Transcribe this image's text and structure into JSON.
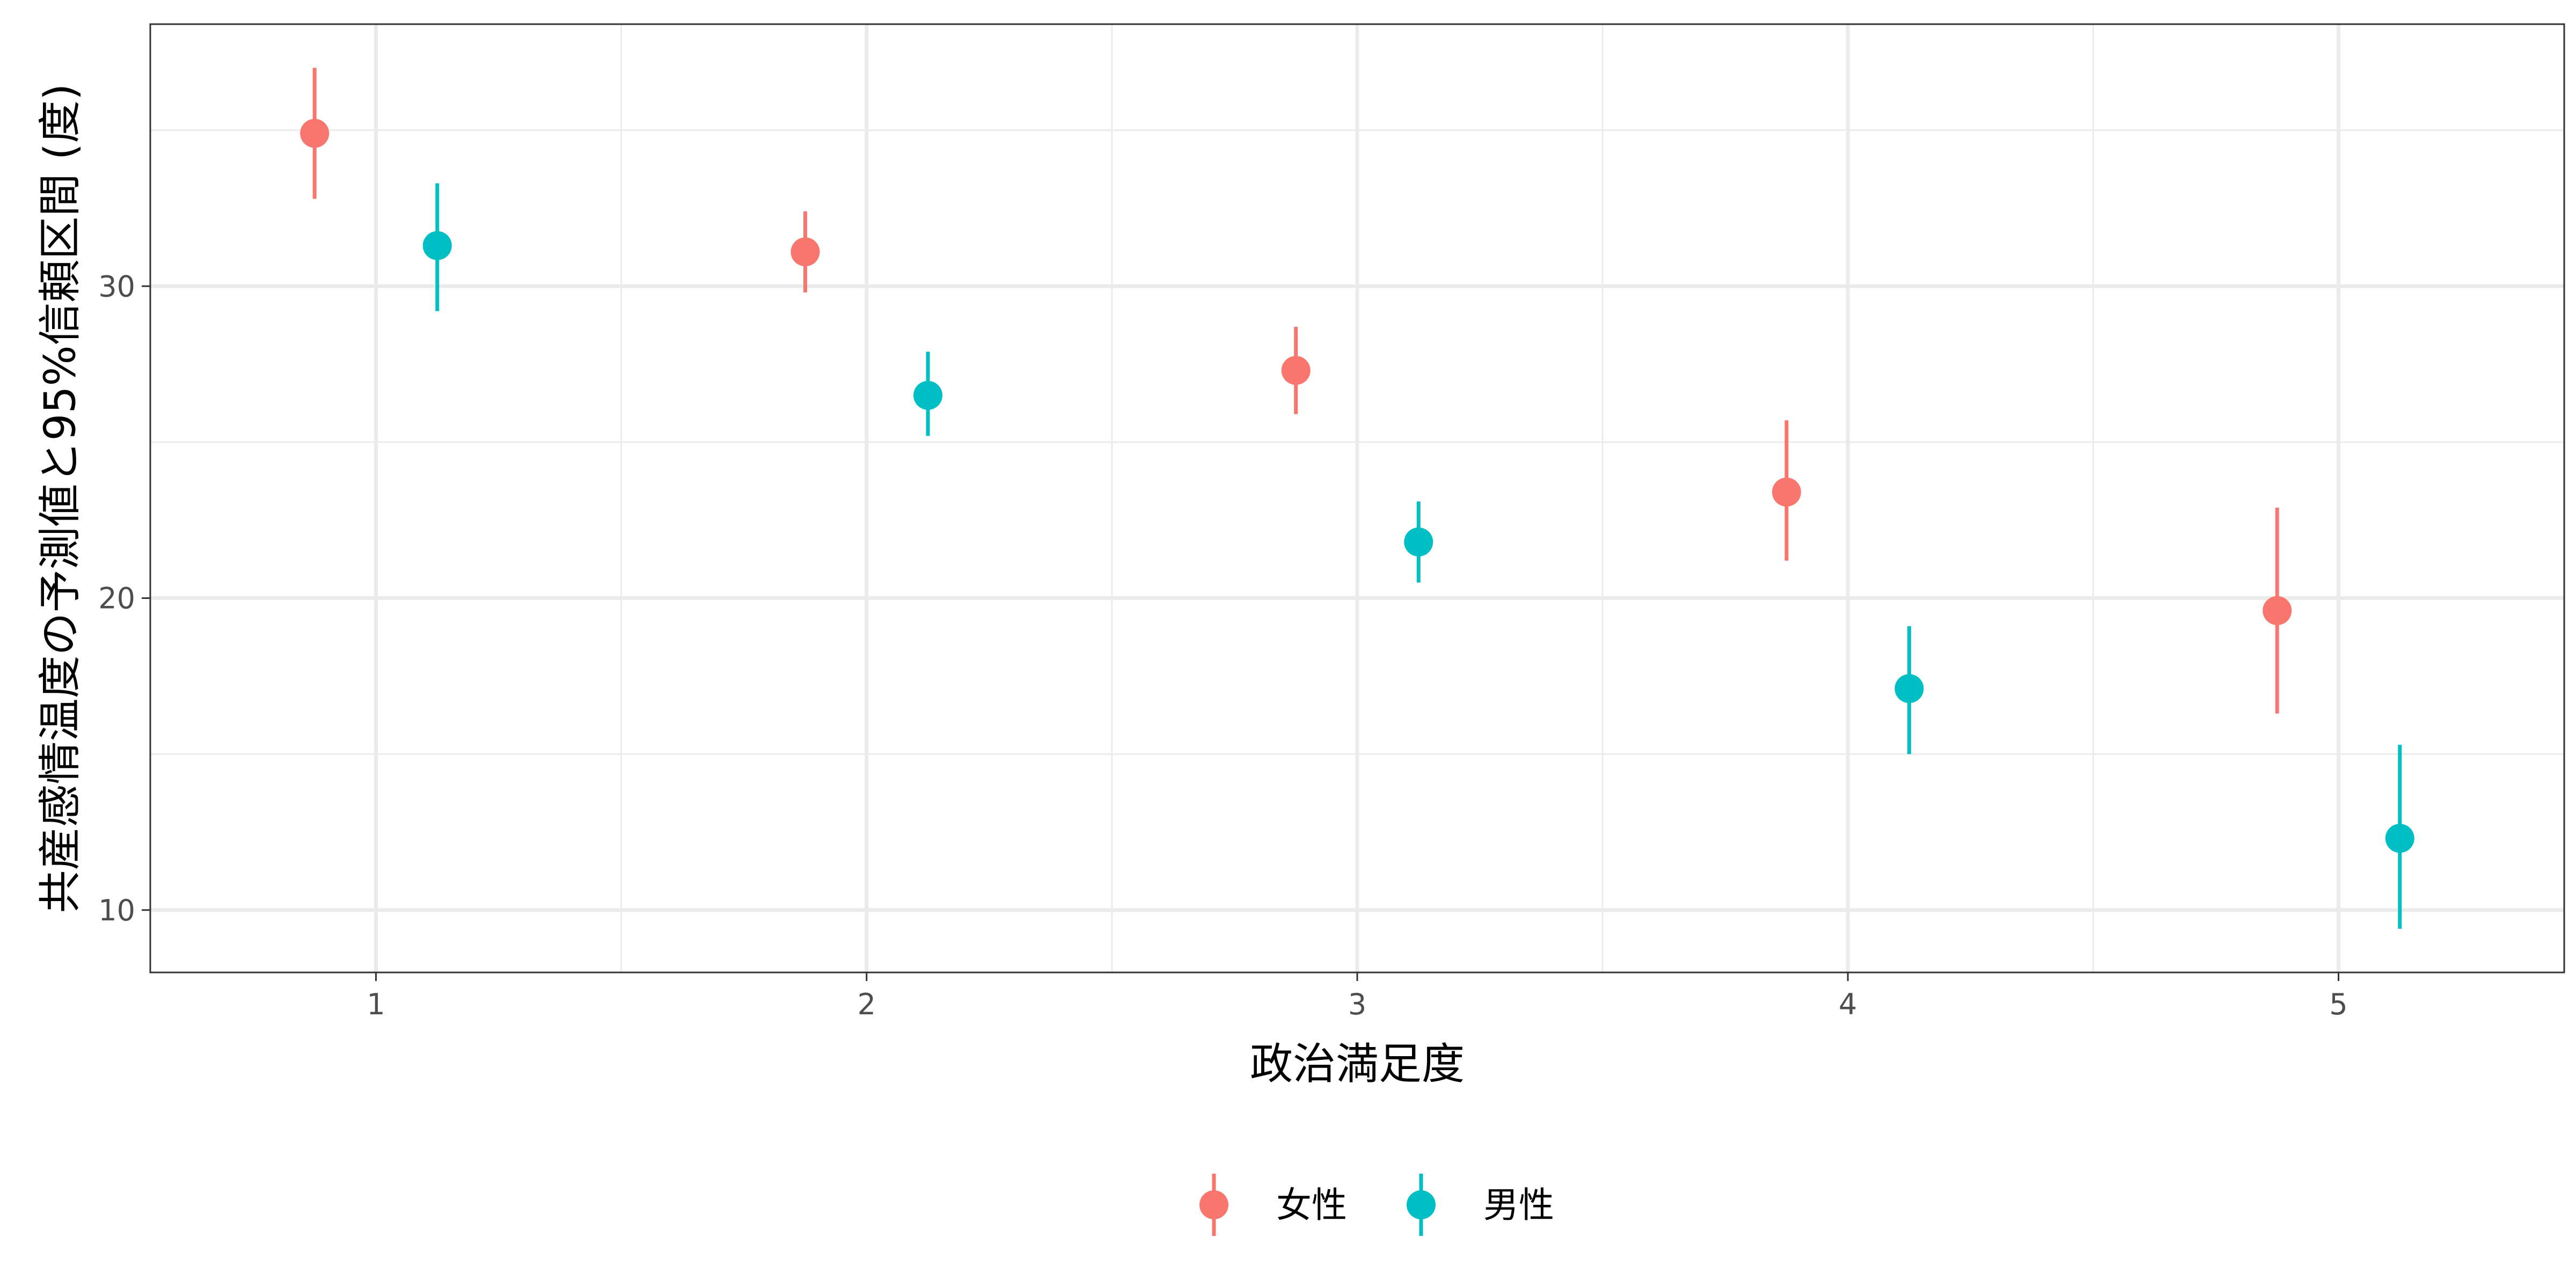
{
  "chart_data": {
    "type": "scatter",
    "xlabel": "政治満足度",
    "ylabel": "共産感情温度の予測値と95%信頼区間 (度)",
    "x_ticks": [
      1,
      2,
      3,
      4,
      5
    ],
    "y_ticks": [
      10,
      20,
      30
    ],
    "xlim": [
      0.54,
      5.46
    ],
    "ylim": [
      8.0,
      38.4
    ],
    "dodge": 0.125,
    "grid": true,
    "legend_position": "bottom",
    "series": [
      {
        "name": "女性",
        "color": "#F8766D",
        "points": [
          {
            "x": 1,
            "y": 34.9,
            "lower": 32.8,
            "upper": 37.0
          },
          {
            "x": 2,
            "y": 31.1,
            "lower": 29.8,
            "upper": 32.4
          },
          {
            "x": 3,
            "y": 27.3,
            "lower": 25.9,
            "upper": 28.7
          },
          {
            "x": 4,
            "y": 23.4,
            "lower": 21.2,
            "upper": 25.7
          },
          {
            "x": 5,
            "y": 19.6,
            "lower": 16.3,
            "upper": 22.9
          }
        ]
      },
      {
        "name": "男性",
        "color": "#00BFC4",
        "points": [
          {
            "x": 1,
            "y": 31.3,
            "lower": 29.2,
            "upper": 33.3
          },
          {
            "x": 2,
            "y": 26.5,
            "lower": 25.2,
            "upper": 27.9
          },
          {
            "x": 3,
            "y": 21.8,
            "lower": 20.5,
            "upper": 23.1
          },
          {
            "x": 4,
            "y": 17.1,
            "lower": 15.0,
            "upper": 19.1
          },
          {
            "x": 5,
            "y": 12.3,
            "lower": 9.4,
            "upper": 15.3
          }
        ]
      }
    ]
  }
}
